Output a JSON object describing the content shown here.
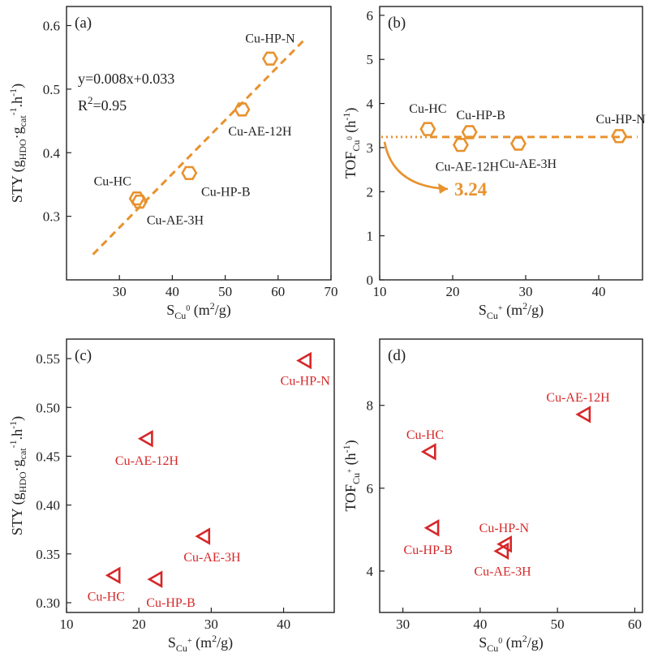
{
  "chart_data": [
    {
      "panel": "(a)",
      "type": "scatter",
      "xlabel": "S_Cu0 (m2/g)",
      "xlabel_parts": {
        "main": "S",
        "sub": "Cu",
        "sup": "0",
        "unit": " (m",
        "unit_sup": "2",
        "unit_end": "/g)"
      },
      "ylabel": "STY (g_HDO·g_cat^-1·h^-1)",
      "ylabel_parts": {
        "main": "STY (g",
        "sub1": "HDO",
        "mid": "·g",
        "sub2": "cat",
        "sup1": "-1",
        "end": ".h",
        "sup2": "-1",
        "close": ")"
      },
      "xlim": [
        20,
        70
      ],
      "ylim": [
        0.2,
        0.63
      ],
      "xticks": [
        "30",
        "40",
        "50",
        "60",
        "70"
      ],
      "xtick_values": [
        30,
        40,
        50,
        60,
        70
      ],
      "yticks": [
        "0.3",
        "0.4",
        "0.5",
        "0.6"
      ],
      "ytick_values": [
        0.3,
        0.4,
        0.5,
        0.6
      ],
      "marker": "hexagon",
      "color": "#E8922E",
      "points": [
        {
          "label": "Cu-HP-N",
          "x": 58.5,
          "y": 0.548
        },
        {
          "label": "Cu-AE-12H",
          "x": 53.2,
          "y": 0.468
        },
        {
          "label": "Cu-HP-B",
          "x": 43.2,
          "y": 0.368
        },
        {
          "label": "Cu-HC",
          "x": 33.3,
          "y": 0.328
        },
        {
          "label": "Cu-AE-3H",
          "x": 33.8,
          "y": 0.323
        }
      ],
      "fit": {
        "type": "linear",
        "x": [
          25,
          65
        ],
        "y": [
          0.24,
          0.578
        ]
      },
      "equation": "y=0.008x+0.033",
      "r2_main": "R",
      "r2_sup": "2",
      "r2_value": "=0.95"
    },
    {
      "panel": "(b)",
      "type": "scatter",
      "xlabel": "S_Cu+ (m2/g)",
      "xlabel_parts": {
        "main": "S",
        "sub": "Cu",
        "sup": "+",
        "unit": " (m",
        "unit_sup": "2",
        "unit_end": "/g)"
      },
      "ylabel": "TOF_Cu0 (h^-1)",
      "ylabel_parts": {
        "main": "TOF",
        "sub": "Cu",
        "subsup": "0",
        "unit": " (h",
        "sup": "-1",
        "close": ")"
      },
      "xlim": [
        10,
        46
      ],
      "ylim": [
        0,
        6.2
      ],
      "xticks": [
        "10",
        "20",
        "30",
        "40"
      ],
      "xtick_values": [
        10,
        20,
        30,
        40
      ],
      "yticks": [
        "0",
        "1",
        "2",
        "3",
        "4",
        "5",
        "6"
      ],
      "ytick_values": [
        0,
        1,
        2,
        3,
        4,
        5,
        6
      ],
      "marker": "hexagon",
      "color": "#E8922E",
      "points": [
        {
          "label": "Cu-HC",
          "x": 16.6,
          "y": 3.42
        },
        {
          "label": "Cu-AE-12H",
          "x": 21.1,
          "y": 3.06
        },
        {
          "label": "Cu-HP-B",
          "x": 22.3,
          "y": 3.35
        },
        {
          "label": "Cu-AE-3H",
          "x": 29.0,
          "y": 3.09
        },
        {
          "label": "Cu-HP-N",
          "x": 42.8,
          "y": 3.26
        }
      ],
      "average": {
        "value": 3.24,
        "label": "3.24"
      }
    },
    {
      "panel": "(c)",
      "type": "scatter",
      "xlabel": "S_Cu+ (m2/g)",
      "xlabel_parts": {
        "main": "S",
        "sub": "Cu",
        "sup": "+",
        "unit": " (m",
        "unit_sup": "2",
        "unit_end": "/g)"
      },
      "ylabel": "STY (g_HDO·g_cat^-1·h^-1)",
      "ylabel_parts": {
        "main": "STY (g",
        "sub1": "HDO",
        "mid": "·g",
        "sub2": "cat",
        "sup1": "-1",
        "end": ".h",
        "sup2": "-1",
        "close": ")"
      },
      "xlim": [
        10,
        47
      ],
      "ylim": [
        0.29,
        0.57
      ],
      "xticks": [
        "10",
        "20",
        "30",
        "40"
      ],
      "xtick_values": [
        10,
        20,
        30,
        40
      ],
      "yticks": [
        "0.30",
        "0.35",
        "0.40",
        "0.45",
        "0.50",
        "0.55"
      ],
      "ytick_values": [
        0.3,
        0.35,
        0.4,
        0.45,
        0.5,
        0.55
      ],
      "marker": "left-triangle",
      "color": "#D62728",
      "points": [
        {
          "label": "Cu-HP-N",
          "x": 43.0,
          "y": 0.548
        },
        {
          "label": "Cu-AE-12H",
          "x": 21.1,
          "y": 0.468
        },
        {
          "label": "Cu-AE-3H",
          "x": 29.0,
          "y": 0.368
        },
        {
          "label": "Cu-HC",
          "x": 16.6,
          "y": 0.328
        },
        {
          "label": "Cu-HP-B",
          "x": 22.4,
          "y": 0.324
        }
      ]
    },
    {
      "panel": "(d)",
      "type": "scatter",
      "xlabel": "S_Cu0 (m2/g)",
      "xlabel_parts": {
        "main": "S",
        "sub": "Cu",
        "sup": "0",
        "unit": " (m",
        "unit_sup": "2",
        "unit_end": "/g)"
      },
      "ylabel": "TOF_Cu+ (h^-1)",
      "ylabel_parts": {
        "main": "TOF",
        "sub": "Cu",
        "subsup": "+",
        "unit": " (h",
        "sup": "-1",
        "close": ")"
      },
      "xlim": [
        27,
        61
      ],
      "ylim": [
        3.0,
        9.6
      ],
      "xticks": [
        "30",
        "40",
        "50",
        "60"
      ],
      "xtick_values": [
        30,
        40,
        50,
        60
      ],
      "yticks": [
        "4",
        "6",
        "8"
      ],
      "ytick_values": [
        4,
        6,
        8
      ],
      "marker": "left-triangle",
      "color": "#D62728",
      "points": [
        {
          "label": "Cu-AE-12H",
          "x": 53.5,
          "y": 7.78
        },
        {
          "label": "Cu-HC",
          "x": 33.5,
          "y": 6.88
        },
        {
          "label": "Cu-HP-B",
          "x": 33.9,
          "y": 5.04
        },
        {
          "label": "Cu-HP-N",
          "x": 43.3,
          "y": 4.65
        },
        {
          "label": "Cu-AE-3H",
          "x": 42.9,
          "y": 4.48
        }
      ]
    }
  ]
}
